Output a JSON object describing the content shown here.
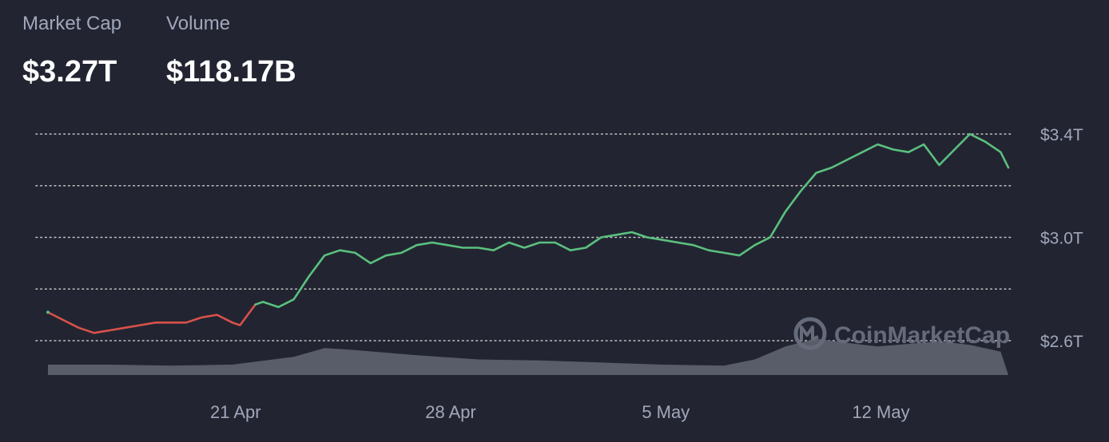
{
  "stats": {
    "market_cap_label": "Market Cap",
    "market_cap_value": "$3.27T",
    "volume_label": "Volume",
    "volume_value": "$118.17B"
  },
  "watermark": {
    "text": "CoinMarketCap",
    "icon": "coinmarketcap-logo-icon"
  },
  "colors": {
    "background": "#222531",
    "up": "#16c784",
    "up_line": "#5bc07f",
    "down": "#ea3943",
    "down_line": "#d9514b",
    "volume": "#5d606d",
    "grid": "#e0e0e0",
    "label": "#a1a7bb"
  },
  "chart_data": {
    "type": "line",
    "title": "",
    "xlabel": "",
    "ylabel": "",
    "x_tick_labels": [
      "21 Apr",
      "28 Apr",
      "5 May",
      "12 May"
    ],
    "y_tick_labels": [
      "$3.4T",
      "$3.0T",
      "$2.6T"
    ],
    "y_tick_values": [
      3.4,
      3.0,
      2.6
    ],
    "gridlines": [
      3.4,
      3.2,
      3.0,
      2.8,
      2.6
    ],
    "ylim": [
      2.6,
      3.4
    ],
    "y_unit": "T USD",
    "x_start": "2025-04-15",
    "x_end": "2025-05-16",
    "grid": true,
    "series": [
      {
        "kind": "market_cap",
        "points": [
          [
            "2025-04-15",
            2.71
          ],
          [
            "2025-04-15T12",
            2.68
          ],
          [
            "2025-04-16",
            2.65
          ],
          [
            "2025-04-16T12",
            2.63
          ],
          [
            "2025-04-17",
            2.64
          ],
          [
            "2025-04-17T12",
            2.65
          ],
          [
            "2025-04-18",
            2.66
          ],
          [
            "2025-04-18T12",
            2.67
          ],
          [
            "2025-04-19",
            2.67
          ],
          [
            "2025-04-19T12",
            2.67
          ],
          [
            "2025-04-20",
            2.69
          ],
          [
            "2025-04-20T12",
            2.7
          ],
          [
            "2025-04-21",
            2.67
          ],
          [
            "2025-04-21T06",
            2.66
          ],
          [
            "2025-04-21T12",
            2.7
          ],
          [
            "2025-04-21T18",
            2.74
          ],
          [
            "2025-04-22",
            2.75
          ],
          [
            "2025-04-22T12",
            2.73
          ],
          [
            "2025-04-23",
            2.76
          ],
          [
            "2025-04-23T12",
            2.85
          ],
          [
            "2025-04-24",
            2.93
          ],
          [
            "2025-04-24T12",
            2.95
          ],
          [
            "2025-04-25",
            2.94
          ],
          [
            "2025-04-25T12",
            2.9
          ],
          [
            "2025-04-26",
            2.93
          ],
          [
            "2025-04-26T12",
            2.94
          ],
          [
            "2025-04-27",
            2.97
          ],
          [
            "2025-04-27T12",
            2.98
          ],
          [
            "2025-04-28",
            2.97
          ],
          [
            "2025-04-28T12",
            2.96
          ],
          [
            "2025-04-29",
            2.96
          ],
          [
            "2025-04-29T12",
            2.95
          ],
          [
            "2025-04-30",
            2.98
          ],
          [
            "2025-04-30T12",
            2.96
          ],
          [
            "2025-05-01",
            2.98
          ],
          [
            "2025-05-01T12",
            2.98
          ],
          [
            "2025-05-02",
            2.95
          ],
          [
            "2025-05-02T12",
            2.96
          ],
          [
            "2025-05-03",
            3.0
          ],
          [
            "2025-05-03T12",
            3.01
          ],
          [
            "2025-05-04",
            3.02
          ],
          [
            "2025-05-04T12",
            3.0
          ],
          [
            "2025-05-05",
            2.99
          ],
          [
            "2025-05-05T12",
            2.98
          ],
          [
            "2025-05-06",
            2.97
          ],
          [
            "2025-05-06T12",
            2.95
          ],
          [
            "2025-05-07",
            2.94
          ],
          [
            "2025-05-07T12",
            2.93
          ],
          [
            "2025-05-08",
            2.97
          ],
          [
            "2025-05-08T12",
            3.0
          ],
          [
            "2025-05-09",
            3.1
          ],
          [
            "2025-05-09T12",
            3.18
          ],
          [
            "2025-05-10",
            3.25
          ],
          [
            "2025-05-10T12",
            3.27
          ],
          [
            "2025-05-11",
            3.3
          ],
          [
            "2025-05-11T12",
            3.33
          ],
          [
            "2025-05-12",
            3.36
          ],
          [
            "2025-05-12T12",
            3.34
          ],
          [
            "2025-05-13",
            3.33
          ],
          [
            "2025-05-13T12",
            3.36
          ],
          [
            "2025-05-14",
            3.28
          ],
          [
            "2025-05-14T12",
            3.34
          ],
          [
            "2025-05-15",
            3.4
          ],
          [
            "2025-05-15T12",
            3.37
          ],
          [
            "2025-05-16",
            3.33
          ],
          [
            "2025-05-16T06",
            3.27
          ]
        ]
      },
      {
        "kind": "volume",
        "points": [
          [
            "2025-04-15",
            0.2
          ],
          [
            "2025-04-17",
            0.2
          ],
          [
            "2025-04-19",
            0.18
          ],
          [
            "2025-04-21",
            0.2
          ],
          [
            "2025-04-23",
            0.35
          ],
          [
            "2025-04-24",
            0.52
          ],
          [
            "2025-04-25",
            0.48
          ],
          [
            "2025-04-27",
            0.38
          ],
          [
            "2025-04-29",
            0.3
          ],
          [
            "2025-05-01",
            0.28
          ],
          [
            "2025-05-03",
            0.24
          ],
          [
            "2025-05-05",
            0.2
          ],
          [
            "2025-05-07",
            0.18
          ],
          [
            "2025-05-08",
            0.3
          ],
          [
            "2025-05-09",
            0.55
          ],
          [
            "2025-05-10",
            0.7
          ],
          [
            "2025-05-11",
            0.62
          ],
          [
            "2025-05-12",
            0.55
          ],
          [
            "2025-05-13",
            0.6
          ],
          [
            "2025-05-14",
            0.65
          ],
          [
            "2025-05-15",
            0.58
          ],
          [
            "2025-05-16",
            0.45
          ]
        ]
      }
    ]
  }
}
